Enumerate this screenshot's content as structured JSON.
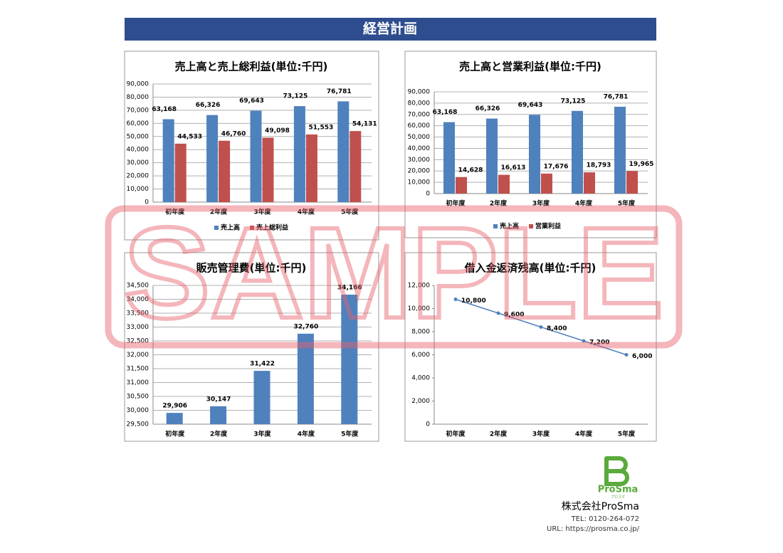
{
  "header": {
    "title": "経営計画"
  },
  "watermark": "SAMPLE",
  "footer": {
    "logo": "ProSma",
    "logo_kana": "プロスマ",
    "company": "株式会社ProSma",
    "tel": "TEL: 0120-264-072",
    "url": "URL: https://prosma.co.jp/"
  },
  "chart_data": [
    {
      "type": "bar",
      "title": "売上高と売上総利益(単位:千円)",
      "categories": [
        "初年度",
        "2年度",
        "3年度",
        "4年度",
        "5年度"
      ],
      "series": [
        {
          "name": "売上高",
          "color": "#4f81bd",
          "values": [
            63168,
            66326,
            69643,
            73125,
            76781
          ],
          "value_labels": [
            "63,168",
            "66,326",
            "69,643",
            "73,125",
            "76,781"
          ]
        },
        {
          "name": "売上総利益",
          "color": "#c0504d",
          "values": [
            44533,
            46760,
            49098,
            51553,
            54131
          ],
          "value_labels": [
            "44,533",
            "46,760",
            "49,098",
            "51,553",
            "54,131"
          ]
        }
      ],
      "ylim": [
        0,
        90000
      ],
      "yticks": [
        0,
        {
          "value": 10000,
          "label": "10,000"
        },
        {
          "value": 20000,
          "label": "20,000"
        },
        {
          "value": 30000,
          "label": "30,000"
        },
        {
          "value": 40000,
          "label": "40,000"
        },
        {
          "value": 50000,
          "label": "50,000"
        },
        {
          "value": 60000,
          "label": "60,000"
        },
        {
          "value": 70000,
          "label": "70,000"
        },
        {
          "value": 80000,
          "label": "80,000"
        },
        {
          "value": 90000,
          "label": "90,000"
        }
      ],
      "grid": true,
      "legend": "bottom"
    },
    {
      "type": "bar",
      "title": "売上高と営業利益(単位:千円)",
      "categories": [
        "初年度",
        "2年度",
        "3年度",
        "4年度",
        "5年度"
      ],
      "series": [
        {
          "name": "売上高",
          "color": "#4f81bd",
          "values": [
            63168,
            66326,
            69643,
            73125,
            76781
          ],
          "value_labels": [
            "63,168",
            "66,326",
            "69,643",
            "73,125",
            "76,781"
          ]
        },
        {
          "name": "営業利益",
          "color": "#c0504d",
          "values": [
            14628,
            16613,
            17676,
            18793,
            19965
          ],
          "value_labels": [
            "14,628",
            "16,613",
            "17,676",
            "18,793",
            "19,965"
          ]
        }
      ],
      "ylim": [
        0,
        90000
      ],
      "yticks": [
        0,
        {
          "value": 10000,
          "label": "10,000"
        },
        {
          "value": 20000,
          "label": "20,000"
        },
        {
          "value": 30000,
          "label": "30,000"
        },
        {
          "value": 40000,
          "label": "40,000"
        },
        {
          "value": 50000,
          "label": "50,000"
        },
        {
          "value": 60000,
          "label": "60,000"
        },
        {
          "value": 70000,
          "label": "70,000"
        },
        {
          "value": 80000,
          "label": "80,000"
        },
        {
          "value": 90000,
          "label": "90,000"
        }
      ],
      "grid": true,
      "legend": "bottom"
    },
    {
      "type": "bar",
      "title": "販売管理費(単位:千円)",
      "categories": [
        "初年度",
        "2年度",
        "3年度",
        "4年度",
        "5年度"
      ],
      "values": [
        29906,
        30147,
        31422,
        32760,
        34166
      ],
      "value_labels": [
        "29,906",
        "30,147",
        "31,422",
        "32,760",
        "34,166"
      ],
      "color": "#4f81bd",
      "ylim": [
        29500,
        34500
      ],
      "yticks": [
        {
          "value": 29500,
          "label": "29,500"
        },
        {
          "value": 30000,
          "label": "30,000"
        },
        {
          "value": 30500,
          "label": "30,500"
        },
        {
          "value": 31000,
          "label": "31,000"
        },
        {
          "value": 31500,
          "label": "31,500"
        },
        {
          "value": 32000,
          "label": "32,000"
        },
        {
          "value": 32500,
          "label": "32,500"
        },
        {
          "value": 33000,
          "label": "33,000"
        },
        {
          "value": 33500,
          "label": "33,500"
        },
        {
          "value": 34000,
          "label": "34,000"
        },
        {
          "value": 34500,
          "label": "34,500"
        }
      ],
      "grid": true
    },
    {
      "type": "line",
      "title": "借入金返済残高(単位:千円)",
      "categories": [
        "初年度",
        "2年度",
        "3年度",
        "4年度",
        "5年度"
      ],
      "values": [
        10800,
        9600,
        8400,
        7200,
        6000
      ],
      "value_labels": [
        "10,800",
        "9,600",
        "8,400",
        "7,200",
        "6,000"
      ],
      "color": "#4f81bd",
      "ylim": [
        0,
        12000
      ],
      "yticks": [
        0,
        {
          "value": 2000,
          "label": "2,000"
        },
        {
          "value": 4000,
          "label": "4,000"
        },
        {
          "value": 6000,
          "label": "6,000"
        },
        {
          "value": 8000,
          "label": "8,000"
        },
        {
          "value": 10000,
          "label": "10,000"
        },
        {
          "value": 12000,
          "label": "12,000"
        }
      ],
      "grid": false
    }
  ]
}
